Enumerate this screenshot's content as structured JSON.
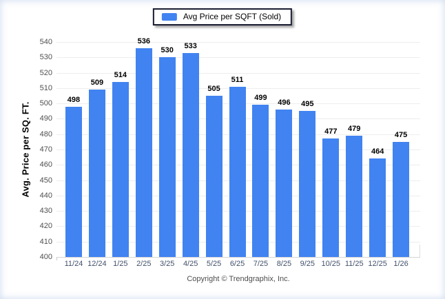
{
  "legend": {
    "label": "Avg Price per SQFT (Sold)",
    "swatch_color": "#4183f0"
  },
  "footer": {
    "copyright": "Copyright © Trendgraphix, Inc."
  },
  "colors": {
    "bar": "#4183f0",
    "gridline": "#ededed",
    "axis_line": "#d4d4d4",
    "y_tick_label": "#4f4f4f",
    "x_tick_label": "#42506a",
    "value_label": "#000000",
    "legend_border": "#191c30",
    "footer_text": "#4d4d4d"
  },
  "chart_data": {
    "type": "bar",
    "categories": [
      "11/24",
      "12/24",
      "1/25",
      "2/25",
      "3/25",
      "4/25",
      "5/25",
      "6/25",
      "7/25",
      "8/25",
      "9/25",
      "10/25",
      "11/25",
      "12/25",
      "1/26"
    ],
    "values": [
      498,
      509,
      514,
      536,
      530,
      533,
      505,
      511,
      499,
      496,
      495,
      477,
      479,
      464,
      475
    ],
    "series_name": "Avg Price per SQFT (Sold)",
    "title": "",
    "xlabel": "",
    "ylabel": "Avg. Price per SQ. FT.",
    "ylim": [
      400,
      540
    ],
    "ytick_step": 10,
    "grid": true,
    "legend_position": "top-center",
    "bar_color": "#4183f0"
  }
}
